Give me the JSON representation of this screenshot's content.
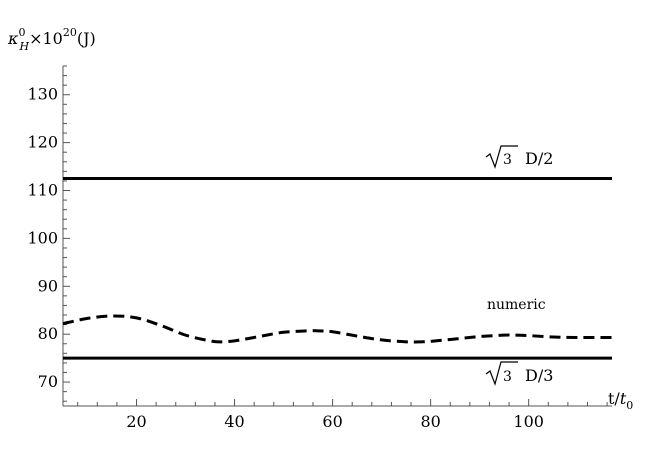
{
  "chart_data": {
    "type": "line",
    "ylabel_parts": {
      "base": "κ",
      "sup": "0",
      "sub": "H",
      "rest": "×10",
      "exp": "20",
      "unit": "(J)"
    },
    "xlabel_parts": {
      "base": "t/",
      "var": "t",
      "sub": "0"
    },
    "xlim": [
      5,
      117
    ],
    "ylim": [
      65,
      136
    ],
    "xticks": [
      20,
      40,
      60,
      80,
      100
    ],
    "yticks": [
      70,
      80,
      90,
      100,
      110,
      120,
      130
    ],
    "grid": false,
    "series": [
      {
        "style": "solid",
        "x": [
          5,
          117
        ],
        "y": [
          112.5,
          112.5
        ]
      },
      {
        "style": "solid",
        "x": [
          5,
          117
        ],
        "y": [
          75,
          75
        ]
      },
      {
        "style": "dashed",
        "x": [
          5,
          10,
          15,
          20,
          25,
          30,
          35,
          37,
          40,
          45,
          50,
          55,
          57,
          60,
          65,
          70,
          75,
          78,
          80,
          85,
          90,
          95,
          97,
          100,
          105,
          110,
          117
        ],
        "y": [
          82.2,
          83.3,
          83.8,
          83.4,
          81.8,
          79.8,
          78.6,
          78.4,
          78.6,
          79.5,
          80.4,
          80.7,
          80.7,
          80.5,
          79.6,
          78.8,
          78.4,
          78.4,
          78.5,
          79.0,
          79.5,
          79.8,
          79.8,
          79.7,
          79.4,
          79.3,
          79.3
        ]
      }
    ],
    "annotations": [
      {
        "id": "upper",
        "radicand": "3",
        "suffix": "D/2"
      },
      {
        "id": "lower",
        "radicand": "3",
        "suffix": "D/3"
      },
      {
        "id": "numeric",
        "text": "numeric"
      }
    ]
  }
}
